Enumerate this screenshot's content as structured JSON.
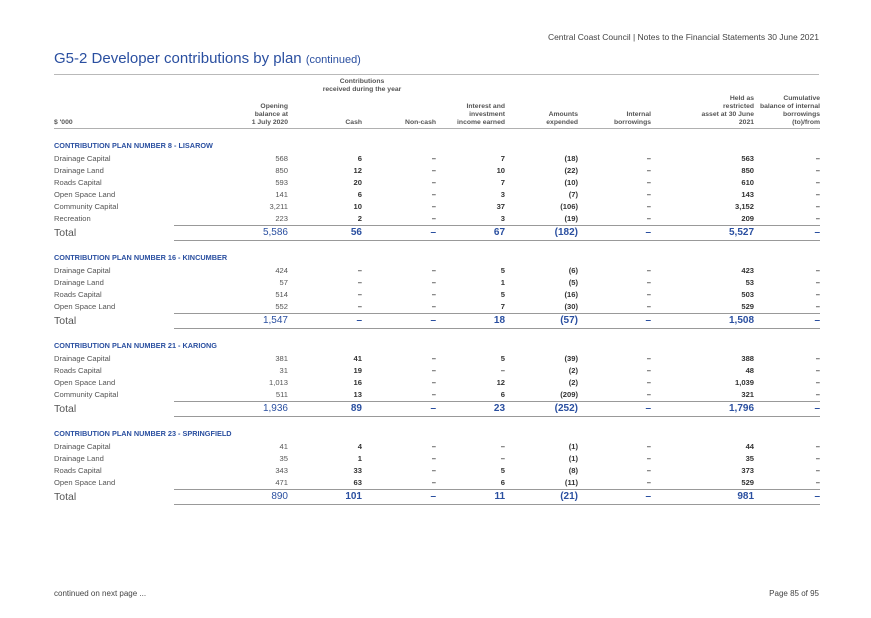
{
  "header": {
    "text": "Central Coast Council | Notes to the Financial Statements 30 June 2021"
  },
  "title": {
    "main": "G5-2   Developer contributions by plan",
    "continued": "(continued)"
  },
  "columns": {
    "label": "$ '000",
    "opening": [
      "Opening",
      "balance at",
      "1 July 2020"
    ],
    "contrib_group": [
      "Contributions",
      "received during the year"
    ],
    "cash": "Cash",
    "noncash": "Non-cash",
    "interest": [
      "Interest and",
      "investment",
      "income earned"
    ],
    "amounts": [
      "Amounts",
      "expended"
    ],
    "internal": [
      "Internal",
      "borrowings"
    ],
    "held": [
      "Held as",
      "restricted",
      "asset at 30 June",
      "2021"
    ],
    "cumulative": [
      "Cumulative",
      "balance of internal",
      "borrowings",
      "(to)/from"
    ]
  },
  "sections": [
    {
      "name": "CONTRIBUTION PLAN NUMBER 8 - LISAROW",
      "rows": [
        [
          "Drainage Capital",
          "568",
          "6",
          "–",
          "7",
          "(18)",
          "–",
          "563",
          "–"
        ],
        [
          "Drainage Land",
          "850",
          "12",
          "–",
          "10",
          "(22)",
          "–",
          "850",
          "–"
        ],
        [
          "Roads Capital",
          "593",
          "20",
          "–",
          "7",
          "(10)",
          "–",
          "610",
          "–"
        ],
        [
          "Open Space Land",
          "141",
          "6",
          "–",
          "3",
          "(7)",
          "–",
          "143",
          "–"
        ],
        [
          "Community Capital",
          "3,211",
          "10",
          "–",
          "37",
          "(106)",
          "–",
          "3,152",
          "–"
        ],
        [
          "Recreation",
          "223",
          "2",
          "–",
          "3",
          "(19)",
          "–",
          "209",
          "–"
        ]
      ],
      "total": [
        "Total",
        "5,586",
        "56",
        "–",
        "67",
        "(182)",
        "–",
        "5,527",
        "–"
      ]
    },
    {
      "name": "CONTRIBUTION PLAN NUMBER 16 - KINCUMBER",
      "rows": [
        [
          "Drainage Capital",
          "424",
          "–",
          "–",
          "5",
          "(6)",
          "–",
          "423",
          "–"
        ],
        [
          "Drainage Land",
          "57",
          "–",
          "–",
          "1",
          "(5)",
          "–",
          "53",
          "–"
        ],
        [
          "Roads Capital",
          "514",
          "–",
          "–",
          "5",
          "(16)",
          "–",
          "503",
          "–"
        ],
        [
          "Open Space Land",
          "552",
          "–",
          "–",
          "7",
          "(30)",
          "–",
          "529",
          "–"
        ]
      ],
      "total": [
        "Total",
        "1,547",
        "–",
        "–",
        "18",
        "(57)",
        "–",
        "1,508",
        "–"
      ]
    },
    {
      "name": "CONTRIBUTION PLAN NUMBER 21 - KARIONG",
      "rows": [
        [
          "Drainage Capital",
          "381",
          "41",
          "–",
          "5",
          "(39)",
          "–",
          "388",
          "–"
        ],
        [
          "Roads Capital",
          "31",
          "19",
          "–",
          "–",
          "(2)",
          "–",
          "48",
          "–"
        ],
        [
          "Open Space Land",
          "1,013",
          "16",
          "–",
          "12",
          "(2)",
          "–",
          "1,039",
          "–"
        ],
        [
          "Community Capital",
          "511",
          "13",
          "–",
          "6",
          "(209)",
          "–",
          "321",
          "–"
        ]
      ],
      "total": [
        "Total",
        "1,936",
        "89",
        "–",
        "23",
        "(252)",
        "–",
        "1,796",
        "–"
      ]
    },
    {
      "name": "CONTRIBUTION PLAN NUMBER 23 - SPRINGFIELD",
      "rows": [
        [
          "Drainage Capital",
          "41",
          "4",
          "–",
          "–",
          "(1)",
          "–",
          "44",
          "–"
        ],
        [
          "Drainage Land",
          "35",
          "1",
          "–",
          "–",
          "(1)",
          "–",
          "35",
          "–"
        ],
        [
          "Roads Capital",
          "343",
          "33",
          "–",
          "5",
          "(8)",
          "–",
          "373",
          "–"
        ],
        [
          "Open Space Land",
          "471",
          "63",
          "–",
          "6",
          "(11)",
          "–",
          "529",
          "–"
        ]
      ],
      "total": [
        "Total",
        "890",
        "101",
        "–",
        "11",
        "(21)",
        "–",
        "981",
        "–"
      ]
    }
  ],
  "footer": {
    "left": "continued on next page ...",
    "right": "Page 85 of 95"
  }
}
